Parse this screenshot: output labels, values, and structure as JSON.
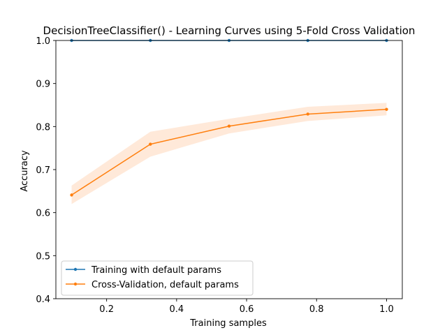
{
  "chart_data": {
    "type": "line",
    "title": "DecisionTreeClassifier() - Learning Curves using 5-Fold Cross Validation",
    "xlabel": "Training samples",
    "ylabel": "Accuracy",
    "xlim": [
      0.055,
      1.045
    ],
    "ylim": [
      0.4,
      1.0
    ],
    "xticks": [
      0.2,
      0.4,
      0.6,
      0.8,
      1.0
    ],
    "xtick_labels": [
      "0.2",
      "0.4",
      "0.6",
      "0.8",
      "1.0"
    ],
    "yticks": [
      0.4,
      0.5,
      0.6,
      0.7,
      0.8,
      0.9,
      1.0
    ],
    "ytick_labels": [
      "0.4",
      "0.5",
      "0.6",
      "0.7",
      "0.8",
      "0.9",
      "1.0"
    ],
    "grid": false,
    "legend_position": "lower-left",
    "x": [
      0.1,
      0.325,
      0.55,
      0.775,
      1.0
    ],
    "series": [
      {
        "name": "Training with default params",
        "values": [
          1.0,
          1.0,
          1.0,
          1.0,
          1.0
        ],
        "color": "#1f77b4"
      },
      {
        "name": "Cross-Validation, default params",
        "values": [
          0.641,
          0.759,
          0.801,
          0.829,
          0.84
        ],
        "band_lower": [
          0.62,
          0.73,
          0.784,
          0.813,
          0.826
        ],
        "band_upper": [
          0.663,
          0.788,
          0.818,
          0.846,
          0.855
        ],
        "color": "#ff7f0e",
        "band_color": "#ffe4d0"
      }
    ]
  }
}
